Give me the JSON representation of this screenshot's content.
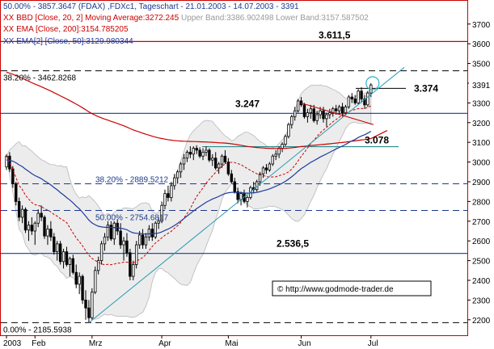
{
  "header": {
    "line1_fib": "50.00% - 3857.3647",
    "line1_title": " (FDAX) ,FDXc1, Tageschart - 21.01.2003 - 14.07.2003 - 3391",
    "bbd": "XX BBD [Close, 20, 2] Moving Average:3272.245",
    "bbd_bands": " Upper Band:3386.902498 Lower Band:3157.587502",
    "ema200": "XX EMA [Close, 200]:3154.785205",
    "ema50": "XX EMA[2] [Close, 50]:3129.980344"
  },
  "colors": {
    "frame": "#cc0000",
    "price": "#000000",
    "bollinger_fill": "#ececec",
    "bollinger_edge": "#b8b8b8",
    "ma20": "#cc0000",
    "ema200": "#cc0000",
    "ema50": "#1e3c9c",
    "trendline": "#2b9bb3",
    "horiz_red": "#cc0000",
    "horiz_navy": "#1b3a8c",
    "horiz_teal": "#2b8c8c"
  },
  "chart_data": {
    "type": "candlestick",
    "ylim": [
      2150,
      3740
    ],
    "y_ticks": [
      "3700",
      "3600",
      "3500",
      "3400",
      "3300",
      "3200",
      "3100",
      "3000",
      "2900",
      "2800",
      "2700",
      "2600",
      "2500",
      "2400",
      "2300",
      "2200"
    ],
    "x_labels": [
      "2003",
      "Feb",
      "Mrz",
      "Apr",
      "Mai",
      "Jun",
      "Jul"
    ],
    "x_label_days": [
      0,
      9,
      27,
      49,
      70,
      93,
      115
    ],
    "last_price_tag": "3391",
    "fib_levels": [
      {
        "label": "50.00% - 3857.3647",
        "value": 3857.3647
      },
      {
        "label": "38.20% - 3462.8268",
        "value": 3462.8268
      },
      {
        "label": "38.20% - 2889.5212",
        "value": 2889.5212
      },
      {
        "label": "50.00% - 2754.6817",
        "value": 2754.6817
      },
      {
        "label": "0.00% - 2185.5938",
        "value": 2185.5938
      }
    ],
    "horizontal_levels": [
      {
        "label": "3.611,5",
        "value": 3611.5
      },
      {
        "label": "3.374",
        "value": 3374
      },
      {
        "label": "3.247",
        "value": 3247
      },
      {
        "label": "3.078",
        "value": 3078
      },
      {
        "label": "2.536,5",
        "value": 2536.5
      }
    ],
    "copyright": "© http://www.godmode-trader.de",
    "candles": [
      [
        2975,
        3040,
        2960,
        3030
      ],
      [
        3030,
        3050,
        2950,
        2965
      ],
      [
        2965,
        2980,
        2870,
        2890
      ],
      [
        2890,
        2900,
        2780,
        2800
      ],
      [
        2800,
        2820,
        2700,
        2720
      ],
      [
        2720,
        2780,
        2690,
        2760
      ],
      [
        2760,
        2770,
        2640,
        2655
      ],
      [
        2655,
        2700,
        2600,
        2680
      ],
      [
        2680,
        2720,
        2630,
        2650
      ],
      [
        2650,
        2700,
        2580,
        2690
      ],
      [
        2690,
        2760,
        2670,
        2740
      ],
      [
        2740,
        2780,
        2700,
        2720
      ],
      [
        2720,
        2730,
        2610,
        2625
      ],
      [
        2625,
        2680,
        2580,
        2660
      ],
      [
        2660,
        2700,
        2600,
        2620
      ],
      [
        2620,
        2640,
        2530,
        2545
      ],
      [
        2545,
        2600,
        2500,
        2585
      ],
      [
        2585,
        2600,
        2480,
        2495
      ],
      [
        2495,
        2560,
        2460,
        2545
      ],
      [
        2545,
        2570,
        2470,
        2480
      ],
      [
        2480,
        2520,
        2420,
        2510
      ],
      [
        2510,
        2530,
        2430,
        2440
      ],
      [
        2440,
        2480,
        2360,
        2380
      ],
      [
        2380,
        2440,
        2330,
        2420
      ],
      [
        2420,
        2430,
        2280,
        2300
      ],
      [
        2300,
        2350,
        2200,
        2260
      ],
      [
        2260,
        2300,
        2185,
        2210
      ],
      [
        2210,
        2360,
        2200,
        2340
      ],
      [
        2340,
        2470,
        2330,
        2450
      ],
      [
        2450,
        2520,
        2430,
        2500
      ],
      [
        2500,
        2600,
        2480,
        2585
      ],
      [
        2585,
        2640,
        2550,
        2620
      ],
      [
        2620,
        2700,
        2600,
        2680
      ],
      [
        2680,
        2700,
        2600,
        2610
      ],
      [
        2610,
        2700,
        2580,
        2690
      ],
      [
        2690,
        2710,
        2630,
        2650
      ],
      [
        2650,
        2690,
        2560,
        2580
      ],
      [
        2580,
        2620,
        2500,
        2600
      ],
      [
        2600,
        2640,
        2520,
        2540
      ],
      [
        2540,
        2560,
        2400,
        2420
      ],
      [
        2420,
        2500,
        2400,
        2480
      ],
      [
        2480,
        2600,
        2460,
        2580
      ],
      [
        2580,
        2650,
        2560,
        2630
      ],
      [
        2630,
        2660,
        2560,
        2580
      ],
      [
        2580,
        2640,
        2560,
        2620
      ],
      [
        2620,
        2680,
        2600,
        2660
      ],
      [
        2660,
        2690,
        2600,
        2620
      ],
      [
        2620,
        2700,
        2610,
        2690
      ],
      [
        2690,
        2720,
        2660,
        2700
      ],
      [
        2700,
        2800,
        2690,
        2780
      ],
      [
        2780,
        2860,
        2760,
        2840
      ],
      [
        2840,
        2880,
        2800,
        2820
      ],
      [
        2820,
        2900,
        2800,
        2880
      ],
      [
        2880,
        2940,
        2860,
        2920
      ],
      [
        2920,
        2960,
        2890,
        2950
      ],
      [
        2950,
        3000,
        2920,
        2990
      ],
      [
        2990,
        3040,
        2960,
        3020
      ],
      [
        3020,
        3060,
        3000,
        3050
      ],
      [
        3050,
        3080,
        3020,
        3040
      ],
      [
        3040,
        3080,
        3010,
        3070
      ],
      [
        3070,
        3085,
        3040,
        3060
      ],
      [
        3060,
        3075,
        3020,
        3030
      ],
      [
        3030,
        3070,
        3010,
        3050
      ],
      [
        3050,
        3080,
        3030,
        3060
      ],
      [
        3060,
        3070,
        3000,
        3010
      ],
      [
        3010,
        3040,
        2980,
        3020
      ],
      [
        3020,
        3050,
        2960,
        2970
      ],
      [
        2970,
        3000,
        2940,
        2990
      ],
      [
        2990,
        3040,
        2970,
        3030
      ],
      [
        3030,
        3060,
        2990,
        3000
      ],
      [
        3000,
        3020,
        2930,
        2940
      ],
      [
        2940,
        2960,
        2890,
        2900
      ],
      [
        2900,
        2920,
        2840,
        2850
      ],
      [
        2850,
        2870,
        2790,
        2810
      ],
      [
        2810,
        2850,
        2780,
        2840
      ],
      [
        2840,
        2860,
        2790,
        2800
      ],
      [
        2800,
        2830,
        2770,
        2820
      ],
      [
        2820,
        2880,
        2810,
        2870
      ],
      [
        2870,
        2900,
        2840,
        2860
      ],
      [
        2860,
        2910,
        2850,
        2900
      ],
      [
        2900,
        2950,
        2880,
        2940
      ],
      [
        2940,
        2980,
        2920,
        2970
      ],
      [
        2970,
        2990,
        2940,
        2960
      ],
      [
        2960,
        3000,
        2950,
        2990
      ],
      [
        2990,
        3040,
        2980,
        3030
      ],
      [
        3030,
        3060,
        3010,
        3040
      ],
      [
        3040,
        3080,
        3020,
        3070
      ],
      [
        3070,
        3100,
        3050,
        3090
      ],
      [
        3090,
        3140,
        3080,
        3130
      ],
      [
        3130,
        3200,
        3120,
        3190
      ],
      [
        3190,
        3240,
        3170,
        3230
      ],
      [
        3230,
        3280,
        3210,
        3260
      ],
      [
        3260,
        3320,
        3250,
        3310
      ],
      [
        3310,
        3330,
        3280,
        3290
      ],
      [
        3290,
        3300,
        3220,
        3230
      ],
      [
        3230,
        3270,
        3200,
        3250
      ],
      [
        3250,
        3290,
        3220,
        3270
      ],
      [
        3270,
        3290,
        3200,
        3210
      ],
      [
        3210,
        3260,
        3190,
        3240
      ],
      [
        3240,
        3280,
        3220,
        3260
      ],
      [
        3260,
        3280,
        3200,
        3220
      ],
      [
        3220,
        3250,
        3180,
        3240
      ],
      [
        3240,
        3270,
        3220,
        3250
      ],
      [
        3250,
        3280,
        3230,
        3270
      ],
      [
        3270,
        3290,
        3240,
        3260
      ],
      [
        3260,
        3290,
        3240,
        3280
      ],
      [
        3280,
        3300,
        3230,
        3250
      ],
      [
        3250,
        3290,
        3240,
        3280
      ],
      [
        3280,
        3340,
        3270,
        3330
      ],
      [
        3330,
        3350,
        3300,
        3320
      ],
      [
        3320,
        3340,
        3290,
        3300
      ],
      [
        3300,
        3370,
        3290,
        3360
      ],
      [
        3360,
        3380,
        3300,
        3320
      ],
      [
        3320,
        3340,
        3270,
        3290
      ],
      [
        3290,
        3360,
        3280,
        3350
      ],
      [
        3350,
        3400,
        3330,
        3391
      ]
    ]
  }
}
